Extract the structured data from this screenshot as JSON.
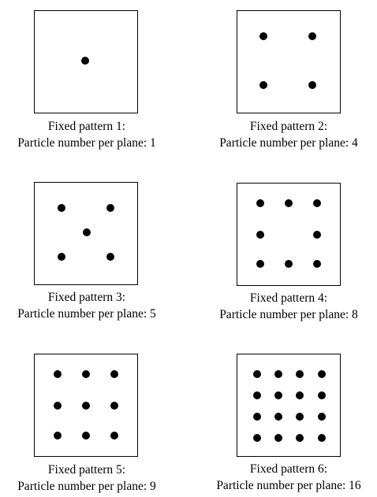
{
  "panels": [
    {
      "title": "Fixed pattern 1:",
      "subtitle": "Particle number per plane: 1",
      "particle_count": 1,
      "particles": [
        [
          0.49,
          0.49
        ]
      ]
    },
    {
      "title": "Fixed pattern 2:",
      "subtitle": "Particle number per plane: 4",
      "particle_count": 4,
      "particles": [
        [
          0.25,
          0.25
        ],
        [
          0.73,
          0.25
        ],
        [
          0.25,
          0.73
        ],
        [
          0.73,
          0.73
        ]
      ]
    },
    {
      "title": "Fixed pattern 3:",
      "subtitle": "Particle number per plane: 5",
      "particle_count": 5,
      "particles": [
        [
          0.26,
          0.25
        ],
        [
          0.74,
          0.25
        ],
        [
          0.51,
          0.49
        ],
        [
          0.26,
          0.73
        ],
        [
          0.74,
          0.73
        ]
      ]
    },
    {
      "title": "Fixed pattern 4:",
      "subtitle": "Particle number per plane: 8",
      "particle_count": 8,
      "particles": [
        [
          0.22,
          0.19
        ],
        [
          0.5,
          0.19
        ],
        [
          0.78,
          0.19
        ],
        [
          0.22,
          0.5
        ],
        [
          0.78,
          0.5
        ],
        [
          0.22,
          0.79
        ],
        [
          0.5,
          0.79
        ],
        [
          0.78,
          0.79
        ]
      ]
    },
    {
      "title": "Fixed pattern 5:",
      "subtitle": "Particle number per plane: 9",
      "particle_count": 9,
      "particles": [
        [
          0.22,
          0.19
        ],
        [
          0.5,
          0.19
        ],
        [
          0.78,
          0.19
        ],
        [
          0.22,
          0.5
        ],
        [
          0.5,
          0.5
        ],
        [
          0.78,
          0.5
        ],
        [
          0.22,
          0.8
        ],
        [
          0.5,
          0.8
        ],
        [
          0.78,
          0.8
        ]
      ]
    },
    {
      "title": "Fixed pattern 6:",
      "subtitle": "Particle number per plane: 16",
      "particle_count": 16,
      "particles": [
        [
          0.19,
          0.19
        ],
        [
          0.4,
          0.19
        ],
        [
          0.61,
          0.19
        ],
        [
          0.82,
          0.19
        ],
        [
          0.19,
          0.4
        ],
        [
          0.4,
          0.4
        ],
        [
          0.61,
          0.4
        ],
        [
          0.82,
          0.4
        ],
        [
          0.19,
          0.61
        ],
        [
          0.4,
          0.61
        ],
        [
          0.61,
          0.61
        ],
        [
          0.82,
          0.61
        ],
        [
          0.19,
          0.82
        ],
        [
          0.4,
          0.82
        ],
        [
          0.61,
          0.82
        ],
        [
          0.82,
          0.82
        ]
      ]
    }
  ]
}
